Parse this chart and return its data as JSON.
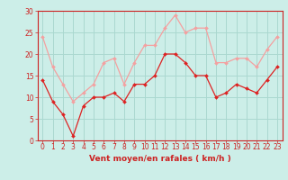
{
  "x": [
    0,
    1,
    2,
    3,
    4,
    5,
    6,
    7,
    8,
    9,
    10,
    11,
    12,
    13,
    14,
    15,
    16,
    17,
    18,
    19,
    20,
    21,
    22,
    23
  ],
  "wind_avg": [
    14,
    9,
    6,
    1,
    8,
    10,
    10,
    11,
    9,
    13,
    13,
    15,
    20,
    20,
    18,
    15,
    15,
    10,
    11,
    13,
    12,
    11,
    14,
    17
  ],
  "wind_gust": [
    24,
    17,
    13,
    9,
    11,
    13,
    18,
    19,
    13,
    18,
    22,
    22,
    26,
    29,
    25,
    26,
    26,
    18,
    18,
    19,
    19,
    17,
    21,
    24
  ],
  "line_avg_color": "#dd2222",
  "line_gust_color": "#f4a0a0",
  "bg_color": "#cceee8",
  "grid_color": "#aad8d0",
  "axis_color": "#cc2222",
  "xlabel": "Vent moyen/en rafales ( km/h )",
  "ylim": [
    0,
    30
  ],
  "xlim": [
    -0.5,
    23.5
  ],
  "yticks": [
    0,
    5,
    10,
    15,
    20,
    25,
    30
  ],
  "ytick_labels": [
    "0",
    "5",
    "10",
    "15",
    "20",
    "25",
    "30"
  ],
  "xlabel_fontsize": 6.5,
  "tick_fontsize": 5.5,
  "ylabel_fontsize": 6
}
